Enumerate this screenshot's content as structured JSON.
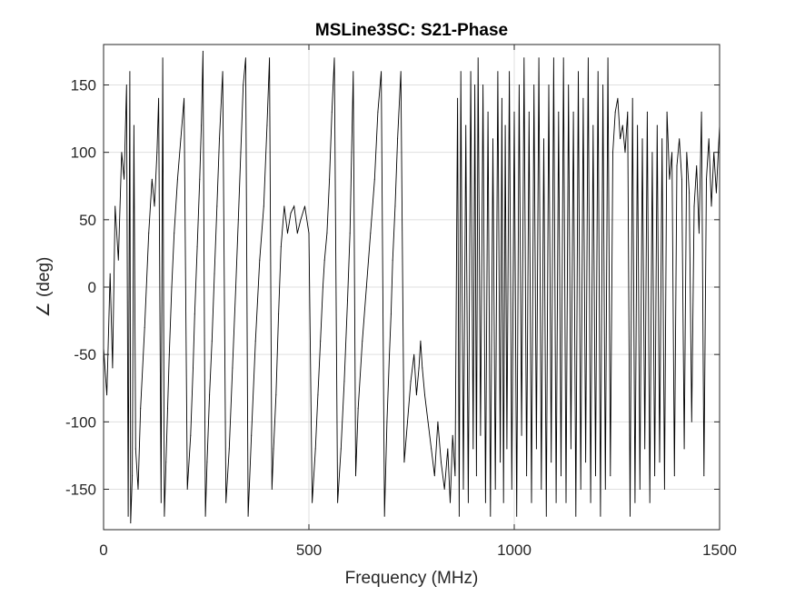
{
  "chart_data": {
    "type": "line",
    "title": "MSLine3SC: S21-Phase",
    "xlabel": "Frequency (MHz)",
    "ylabel": "∠ (deg)",
    "xlim": [
      0,
      1500
    ],
    "ylim": [
      -180,
      180
    ],
    "x_ticks": [
      0,
      500,
      1000,
      1500
    ],
    "x_tick_labels": [
      "0",
      "500",
      "1000",
      "1500"
    ],
    "y_ticks": [
      -150,
      -100,
      -50,
      0,
      50,
      100,
      150
    ],
    "y_tick_labels": [
      "-150",
      "-100",
      "-50",
      "0",
      "50",
      "100",
      "150"
    ],
    "grid": true,
    "series": [
      {
        "color": "#000000",
        "x": [
          0,
          8,
          16,
          22,
          28,
          36,
          44,
          50,
          56,
          60,
          64,
          66,
          70,
          74,
          78,
          84,
          90,
          100,
          110,
          118,
          124,
          130,
          134,
          140,
          144,
          148,
          152,
          156,
          160,
          166,
          172,
          180,
          188,
          196,
          204,
          212,
          218,
          222,
          228,
          234,
          238,
          242,
          248,
          252,
          258,
          264,
          270,
          276,
          282,
          290,
          298,
          306,
          314,
          322,
          328,
          334,
          340,
          346,
          352,
          360,
          370,
          380,
          390,
          398,
          404,
          410,
          414,
          420,
          426,
          432,
          440,
          448,
          456,
          464,
          472,
          480,
          490,
          500,
          508,
          516,
          522,
          528,
          534,
          538,
          544,
          550,
          556,
          562,
          570,
          578,
          586,
          594,
          600,
          604,
          608,
          614,
          620,
          630,
          640,
          650,
          660,
          668,
          676,
          684,
          690,
          696,
          700,
          704,
          710,
          716,
          724,
          732,
          740,
          748,
          756,
          762,
          768,
          772,
          776,
          782,
          790,
          798,
          806,
          814,
          822,
          830,
          838,
          844,
          850,
          856,
          862,
          866,
          870,
          876,
          882,
          888,
          894,
          900,
          904,
          908,
          912,
          918,
          924,
          930,
          936,
          942,
          948,
          954,
          960,
          966,
          970,
          974,
          978,
          982,
          988,
          994,
          1000,
          1006,
          1012,
          1018,
          1024,
          1030,
          1036,
          1042,
          1048,
          1054,
          1060,
          1066,
          1072,
          1078,
          1084,
          1090,
          1096,
          1102,
          1108,
          1114,
          1120,
          1126,
          1132,
          1138,
          1144,
          1150,
          1156,
          1162,
          1168,
          1174,
          1180,
          1186,
          1192,
          1198,
          1204,
          1210,
          1216,
          1222,
          1228,
          1234,
          1240,
          1246,
          1252,
          1258,
          1264,
          1270,
          1276,
          1282,
          1288,
          1294,
          1300,
          1306,
          1312,
          1318,
          1324,
          1330,
          1336,
          1342,
          1348,
          1354,
          1360,
          1366,
          1372,
          1378,
          1384,
          1390,
          1396,
          1402,
          1408,
          1414,
          1420,
          1426,
          1432,
          1438,
          1444,
          1450,
          1456,
          1462,
          1468,
          1474,
          1480,
          1486,
          1492,
          1500
        ],
        "y": [
          -45,
          -80,
          10,
          -60,
          60,
          20,
          100,
          80,
          150,
          -170,
          160,
          -175,
          -140,
          120,
          -120,
          -150,
          -90,
          -30,
          40,
          80,
          60,
          100,
          140,
          -160,
          170,
          -170,
          -130,
          -90,
          -50,
          0,
          40,
          80,
          110,
          140,
          -150,
          -110,
          -60,
          -20,
          30,
          80,
          120,
          175,
          -170,
          -130,
          -80,
          -40,
          10,
          60,
          110,
          160,
          -160,
          -120,
          -60,
          0,
          50,
          100,
          150,
          170,
          -170,
          -110,
          -40,
          20,
          60,
          120,
          170,
          -150,
          -120,
          -80,
          -20,
          30,
          60,
          40,
          55,
          60,
          40,
          50,
          60,
          40,
          -160,
          -120,
          -80,
          -40,
          0,
          20,
          40,
          80,
          130,
          170,
          -160,
          -120,
          -70,
          -10,
          40,
          100,
          160,
          -140,
          -90,
          -40,
          0,
          40,
          80,
          130,
          160,
          -170,
          -100,
          -50,
          -20,
          20,
          60,
          110,
          160,
          -130,
          -100,
          -70,
          -50,
          -80,
          -60,
          -40,
          -60,
          -80,
          -100,
          -120,
          -140,
          -100,
          -130,
          -150,
          -120,
          -160,
          -110,
          -140,
          140,
          -170,
          160,
          -150,
          120,
          -160,
          160,
          -120,
          150,
          -140,
          170,
          -110,
          150,
          -160,
          130,
          -170,
          110,
          -150,
          160,
          -130,
          140,
          -160,
          120,
          -120,
          160,
          -150,
          130,
          -170,
          150,
          -110,
          170,
          -140,
          130,
          -160,
          150,
          -120,
          170,
          -150,
          110,
          -170,
          150,
          -130,
          170,
          -160,
          130,
          -140,
          170,
          -160,
          150,
          -120,
          130,
          -170,
          160,
          -150,
          140,
          -130,
          170,
          -160,
          120,
          -140,
          160,
          -170,
          150,
          -150,
          170,
          -140,
          100,
          130,
          140,
          110,
          120,
          100,
          130,
          -170,
          140,
          -160,
          120,
          -150,
          110,
          -120,
          130,
          -160,
          100,
          -140,
          120,
          -130,
          110,
          -150,
          130,
          80,
          100,
          -140,
          90,
          110,
          80,
          -120,
          100,
          70,
          -100,
          60,
          90,
          40,
          130,
          -140,
          80,
          110,
          60,
          100,
          70,
          120
        ]
      }
    ]
  }
}
